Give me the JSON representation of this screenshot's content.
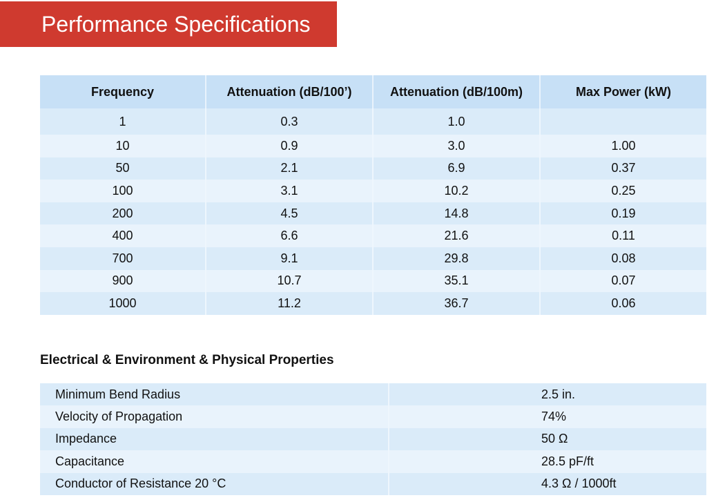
{
  "banner": {
    "title": "Performance Specifications"
  },
  "performance_table": {
    "headers": [
      "Frequency",
      "Attenuation (dB/100’)",
      "Attenuation (dB/100m)",
      "Max Power (kW)"
    ],
    "rows": [
      [
        "1",
        "0.3",
        "1.0",
        ""
      ],
      [
        "10",
        "0.9",
        "3.0",
        "1.00"
      ],
      [
        "50",
        "2.1",
        "6.9",
        "0.37"
      ],
      [
        "100",
        "3.1",
        "10.2",
        "0.25"
      ],
      [
        "200",
        "4.5",
        "14.8",
        "0.19"
      ],
      [
        "400",
        "6.6",
        "21.6",
        "0.11"
      ],
      [
        "700",
        "9.1",
        "29.8",
        "0.08"
      ],
      [
        "900",
        "10.7",
        "35.1",
        "0.07"
      ],
      [
        "1000",
        "11.2",
        "36.7",
        "0.06"
      ]
    ]
  },
  "properties": {
    "title": "Electrical & Environment & Physical Properties",
    "rows": [
      [
        "Minimum Bend Radius",
        "2.5 in."
      ],
      [
        "Velocity of Propagation",
        "74%"
      ],
      [
        "Impedance",
        "50 Ω"
      ],
      [
        "Capacitance",
        "28.5 pF/ft"
      ],
      [
        "Conductor of Resistance 20 °C",
        "4.3 Ω / 1000ft"
      ]
    ]
  },
  "colors": {
    "banner": "#cf3a2f",
    "header_row": "#c7e0f6",
    "row_a": "#daebf9",
    "row_b": "#e9f3fc"
  }
}
